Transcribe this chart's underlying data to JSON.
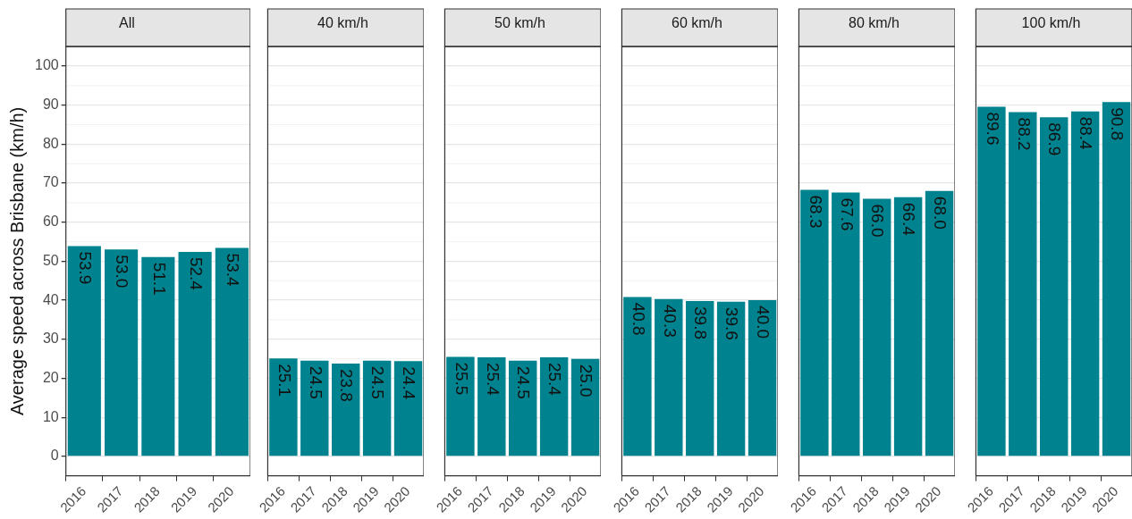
{
  "chart_data": [
    {
      "type": "bar",
      "title": "All",
      "ylabel": "Average speed across Brisbane (km/h)",
      "categories": [
        "2016",
        "2017",
        "2018",
        "2019",
        "2020"
      ],
      "values": [
        53.9,
        53.0,
        51.1,
        52.4,
        53.4
      ],
      "value_labels": [
        "53.9",
        "53.0",
        "51.1",
        "52.4",
        "53.4"
      ],
      "color": "#00838f",
      "ylim": [
        -5,
        105
      ],
      "yticks": [
        0,
        10,
        20,
        30,
        40,
        50,
        60,
        70,
        80,
        90,
        100
      ],
      "grid": true
    },
    {
      "type": "bar",
      "title": "40 km/h",
      "categories": [
        "2016",
        "2017",
        "2018",
        "2019",
        "2020"
      ],
      "values": [
        25.1,
        24.5,
        23.8,
        24.5,
        24.4
      ],
      "value_labels": [
        "25.1",
        "24.5",
        "23.8",
        "24.5",
        "24.4"
      ],
      "color": "#00838f",
      "ylim": [
        -5,
        105
      ],
      "yticks": [
        0,
        10,
        20,
        30,
        40,
        50,
        60,
        70,
        80,
        90,
        100
      ],
      "grid": true,
      "tick_labels": "x"
    },
    {
      "type": "bar",
      "title": "50 km/h",
      "categories": [
        "2016",
        "2017",
        "2018",
        "2019",
        "2020"
      ],
      "values": [
        25.5,
        25.4,
        24.5,
        25.4,
        25.0
      ],
      "value_labels": [
        "25.5",
        "25.4",
        "24.5",
        "25.4",
        "25.0"
      ],
      "color": "#00838f",
      "ylim": [
        -5,
        105
      ],
      "yticks": [
        0,
        10,
        20,
        30,
        40,
        50,
        60,
        70,
        80,
        90,
        100
      ],
      "grid": true,
      "tick_labels": "x"
    },
    {
      "type": "bar",
      "title": "60 km/h",
      "categories": [
        "2016",
        "2017",
        "2018",
        "2019",
        "2020"
      ],
      "values": [
        40.8,
        40.3,
        39.8,
        39.6,
        40.0
      ],
      "value_labels": [
        "40.8",
        "40.3",
        "39.8",
        "39.6",
        "40.0"
      ],
      "color": "#00838f",
      "ylim": [
        -5,
        105
      ],
      "yticks": [
        0,
        10,
        20,
        30,
        40,
        50,
        60,
        70,
        80,
        90,
        100
      ],
      "grid": true,
      "tick_labels": "x"
    },
    {
      "type": "bar",
      "title": "80 km/h",
      "categories": [
        "2016",
        "2017",
        "2018",
        "2019",
        "2020"
      ],
      "values": [
        68.3,
        67.6,
        66.0,
        66.4,
        68.0
      ],
      "value_labels": [
        "68.3",
        "67.6",
        "66.0",
        "66.4",
        "68.0"
      ],
      "color": "#00838f",
      "ylim": [
        -5,
        105
      ],
      "yticks": [
        0,
        10,
        20,
        30,
        40,
        50,
        60,
        70,
        80,
        90,
        100
      ],
      "grid": true,
      "tick_labels": "x"
    },
    {
      "type": "bar",
      "title": "100 km/h",
      "categories": [
        "2016",
        "2017",
        "2018",
        "2019",
        "2020"
      ],
      "values": [
        89.6,
        88.2,
        86.9,
        88.4,
        90.8
      ],
      "value_labels": [
        "89.6",
        "88.2",
        "86.9",
        "88.4",
        "90.8"
      ],
      "color": "#00838f",
      "ylim": [
        -5,
        105
      ],
      "yticks": [
        0,
        10,
        20,
        30,
        40,
        50,
        60,
        70,
        80,
        90,
        100
      ],
      "grid": true,
      "tick_labels": "x"
    }
  ]
}
